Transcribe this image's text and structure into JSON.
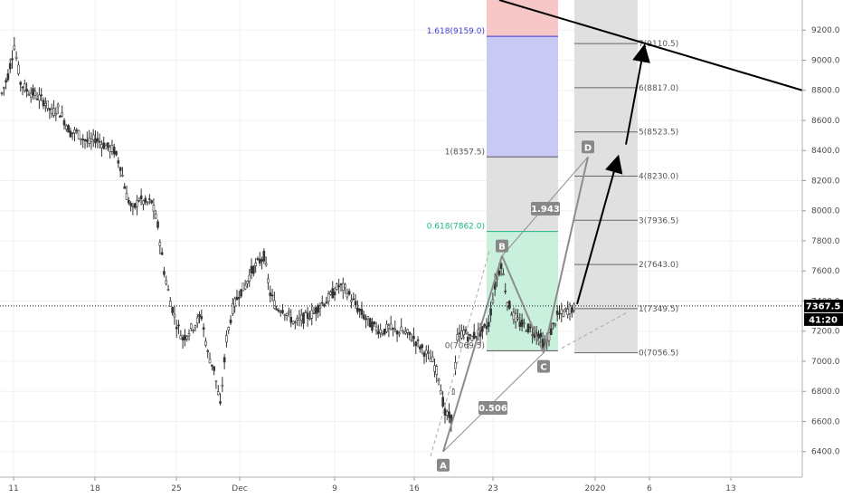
{
  "chart_data": {
    "type": "candlestick",
    "y_axis": {
      "ylim": [
        6230,
        9400
      ],
      "ticks": [
        "9200.0",
        "9000.0",
        "8800.0",
        "8600.0",
        "8400.0",
        "8200.0",
        "8000.0",
        "7800.0",
        "7600.0",
        "7400.0",
        "7200.0",
        "7000.0",
        "6800.0",
        "6600.0",
        "6400.0"
      ],
      "current_price": "7367.5",
      "countdown": "41:20"
    },
    "x_axis": {
      "ticks": [
        "11",
        "18",
        "25",
        "Dec",
        "9",
        "16",
        "23",
        "2020",
        "6",
        "13"
      ]
    },
    "price_path": [
      [
        0,
        8780
      ],
      [
        1,
        8900
      ],
      [
        2,
        9100
      ],
      [
        3,
        8850
      ],
      [
        4,
        8800
      ],
      [
        5,
        8780
      ],
      [
        6,
        8750
      ],
      [
        7,
        8720
      ],
      [
        8,
        8650
      ],
      [
        9,
        8680
      ],
      [
        10,
        8600
      ],
      [
        11,
        8520
      ],
      [
        12,
        8520
      ],
      [
        13,
        8480
      ],
      [
        14,
        8450
      ],
      [
        15,
        8480
      ],
      [
        16,
        8450
      ],
      [
        17,
        8420
      ],
      [
        18,
        8400
      ],
      [
        19,
        8300
      ],
      [
        20,
        8100
      ],
      [
        21,
        8000
      ],
      [
        22,
        8080
      ],
      [
        23,
        8050
      ],
      [
        24,
        8060
      ],
      [
        25,
        7900
      ],
      [
        26,
        7600
      ],
      [
        27,
        7400
      ],
      [
        28,
        7250
      ],
      [
        29,
        7150
      ],
      [
        30,
        7200
      ],
      [
        31,
        7250
      ],
      [
        32,
        7300
      ],
      [
        33,
        7050
      ],
      [
        34,
        6950
      ],
      [
        35,
        6700
      ],
      [
        36,
        7150
      ],
      [
        37,
        7350
      ],
      [
        38,
        7450
      ],
      [
        39,
        7500
      ],
      [
        40,
        7600
      ],
      [
        41,
        7650
      ],
      [
        42,
        7700
      ],
      [
        43,
        7450
      ],
      [
        44,
        7350
      ],
      [
        45,
        7350
      ],
      [
        46,
        7300
      ],
      [
        47,
        7250
      ],
      [
        48,
        7280
      ],
      [
        49,
        7300
      ],
      [
        50,
        7320
      ],
      [
        51,
        7380
      ],
      [
        52,
        7400
      ],
      [
        53,
        7450
      ],
      [
        54,
        7500
      ],
      [
        55,
        7480
      ],
      [
        56,
        7420
      ],
      [
        57,
        7350
      ],
      [
        58,
        7300
      ],
      [
        59,
        7250
      ],
      [
        60,
        7220
      ],
      [
        61,
        7200
      ],
      [
        62,
        7220
      ],
      [
        63,
        7200
      ],
      [
        64,
        7200
      ],
      [
        65,
        7180
      ],
      [
        66,
        7150
      ],
      [
        67,
        7100
      ],
      [
        68,
        7050
      ],
      [
        69,
        7000
      ],
      [
        70,
        6900
      ],
      [
        71,
        6650
      ],
      [
        72,
        6620
      ],
      [
        73,
        7150
      ],
      [
        74,
        7200
      ],
      [
        75,
        7150
      ],
      [
        76,
        7180
      ],
      [
        77,
        7200
      ],
      [
        78,
        7250
      ],
      [
        79,
        7500
      ],
      [
        80,
        7650
      ],
      [
        81,
        7400
      ],
      [
        82,
        7300
      ],
      [
        83,
        7250
      ],
      [
        84,
        7230
      ],
      [
        85,
        7200
      ],
      [
        86,
        7180
      ],
      [
        87,
        7100
      ],
      [
        88,
        7200
      ],
      [
        89,
        7300
      ],
      [
        90,
        7320
      ],
      [
        91,
        7350
      ]
    ],
    "pattern": {
      "points": [
        {
          "label": "A",
          "price": 6400.0
        },
        {
          "label": "B",
          "price": 7700.0
        },
        {
          "label": "C",
          "price": 7056.5
        },
        {
          "label": "D",
          "price": 8357.5
        }
      ],
      "ratios": [
        "0.506",
        "1.943"
      ]
    },
    "fib_retracement": [
      {
        "label": "1.618(9159.0)",
        "price": 9159.0,
        "color": "#3b3bd1"
      },
      {
        "label": "1(8357.5)",
        "price": 8357.5,
        "color": "#555555"
      },
      {
        "label": "0.618(7862.0)",
        "price": 7862.0,
        "color": "#1db67a"
      },
      {
        "label": "0(7069.5)",
        "price": 7069.5,
        "color": "#555555"
      }
    ],
    "fib_extension": [
      {
        "label": "7(9110.5)",
        "price": 9110.5
      },
      {
        "label": "6(8817.0)",
        "price": 8817.0
      },
      {
        "label": "5(8523.5)",
        "price": 8523.5
      },
      {
        "label": "4(8230.0)",
        "price": 8230.0
      },
      {
        "label": "3(7936.5)",
        "price": 7936.5
      },
      {
        "label": "2(7643.0)",
        "price": 7643.0
      },
      {
        "label": "1(7349.5)",
        "price": 7349.5
      },
      {
        "label": "0(7056.5)",
        "price": 7056.5
      }
    ],
    "colors": {
      "candle": "#333333",
      "fib_red": "#f7c6c6",
      "fib_blue": "#c9c9f5",
      "fib_green": "#c9f0dc",
      "fib_grey": "#e0e0e0",
      "pattern_line": "#8c8c8c",
      "trend_line": "#000000",
      "price_tag": "#000000"
    },
    "grid": true
  }
}
